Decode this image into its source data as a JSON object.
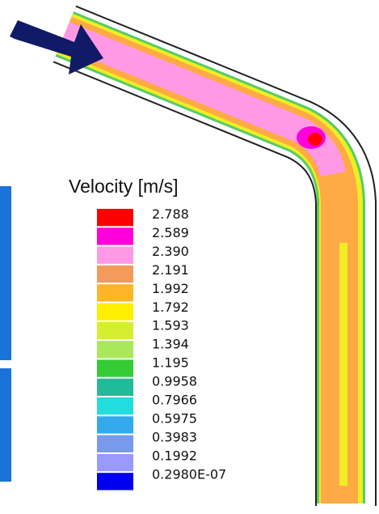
{
  "legend": {
    "title": "Velocity [m/s]",
    "labels": [
      "2.788",
      "2.589",
      "2.390",
      "2.191",
      "1.992",
      "1.792",
      "1.593",
      "1.394",
      "1.195",
      "0.9958",
      "0.7966",
      "0.5975",
      "0.3983",
      "0.1992",
      "0.2980E-07"
    ]
  }
}
